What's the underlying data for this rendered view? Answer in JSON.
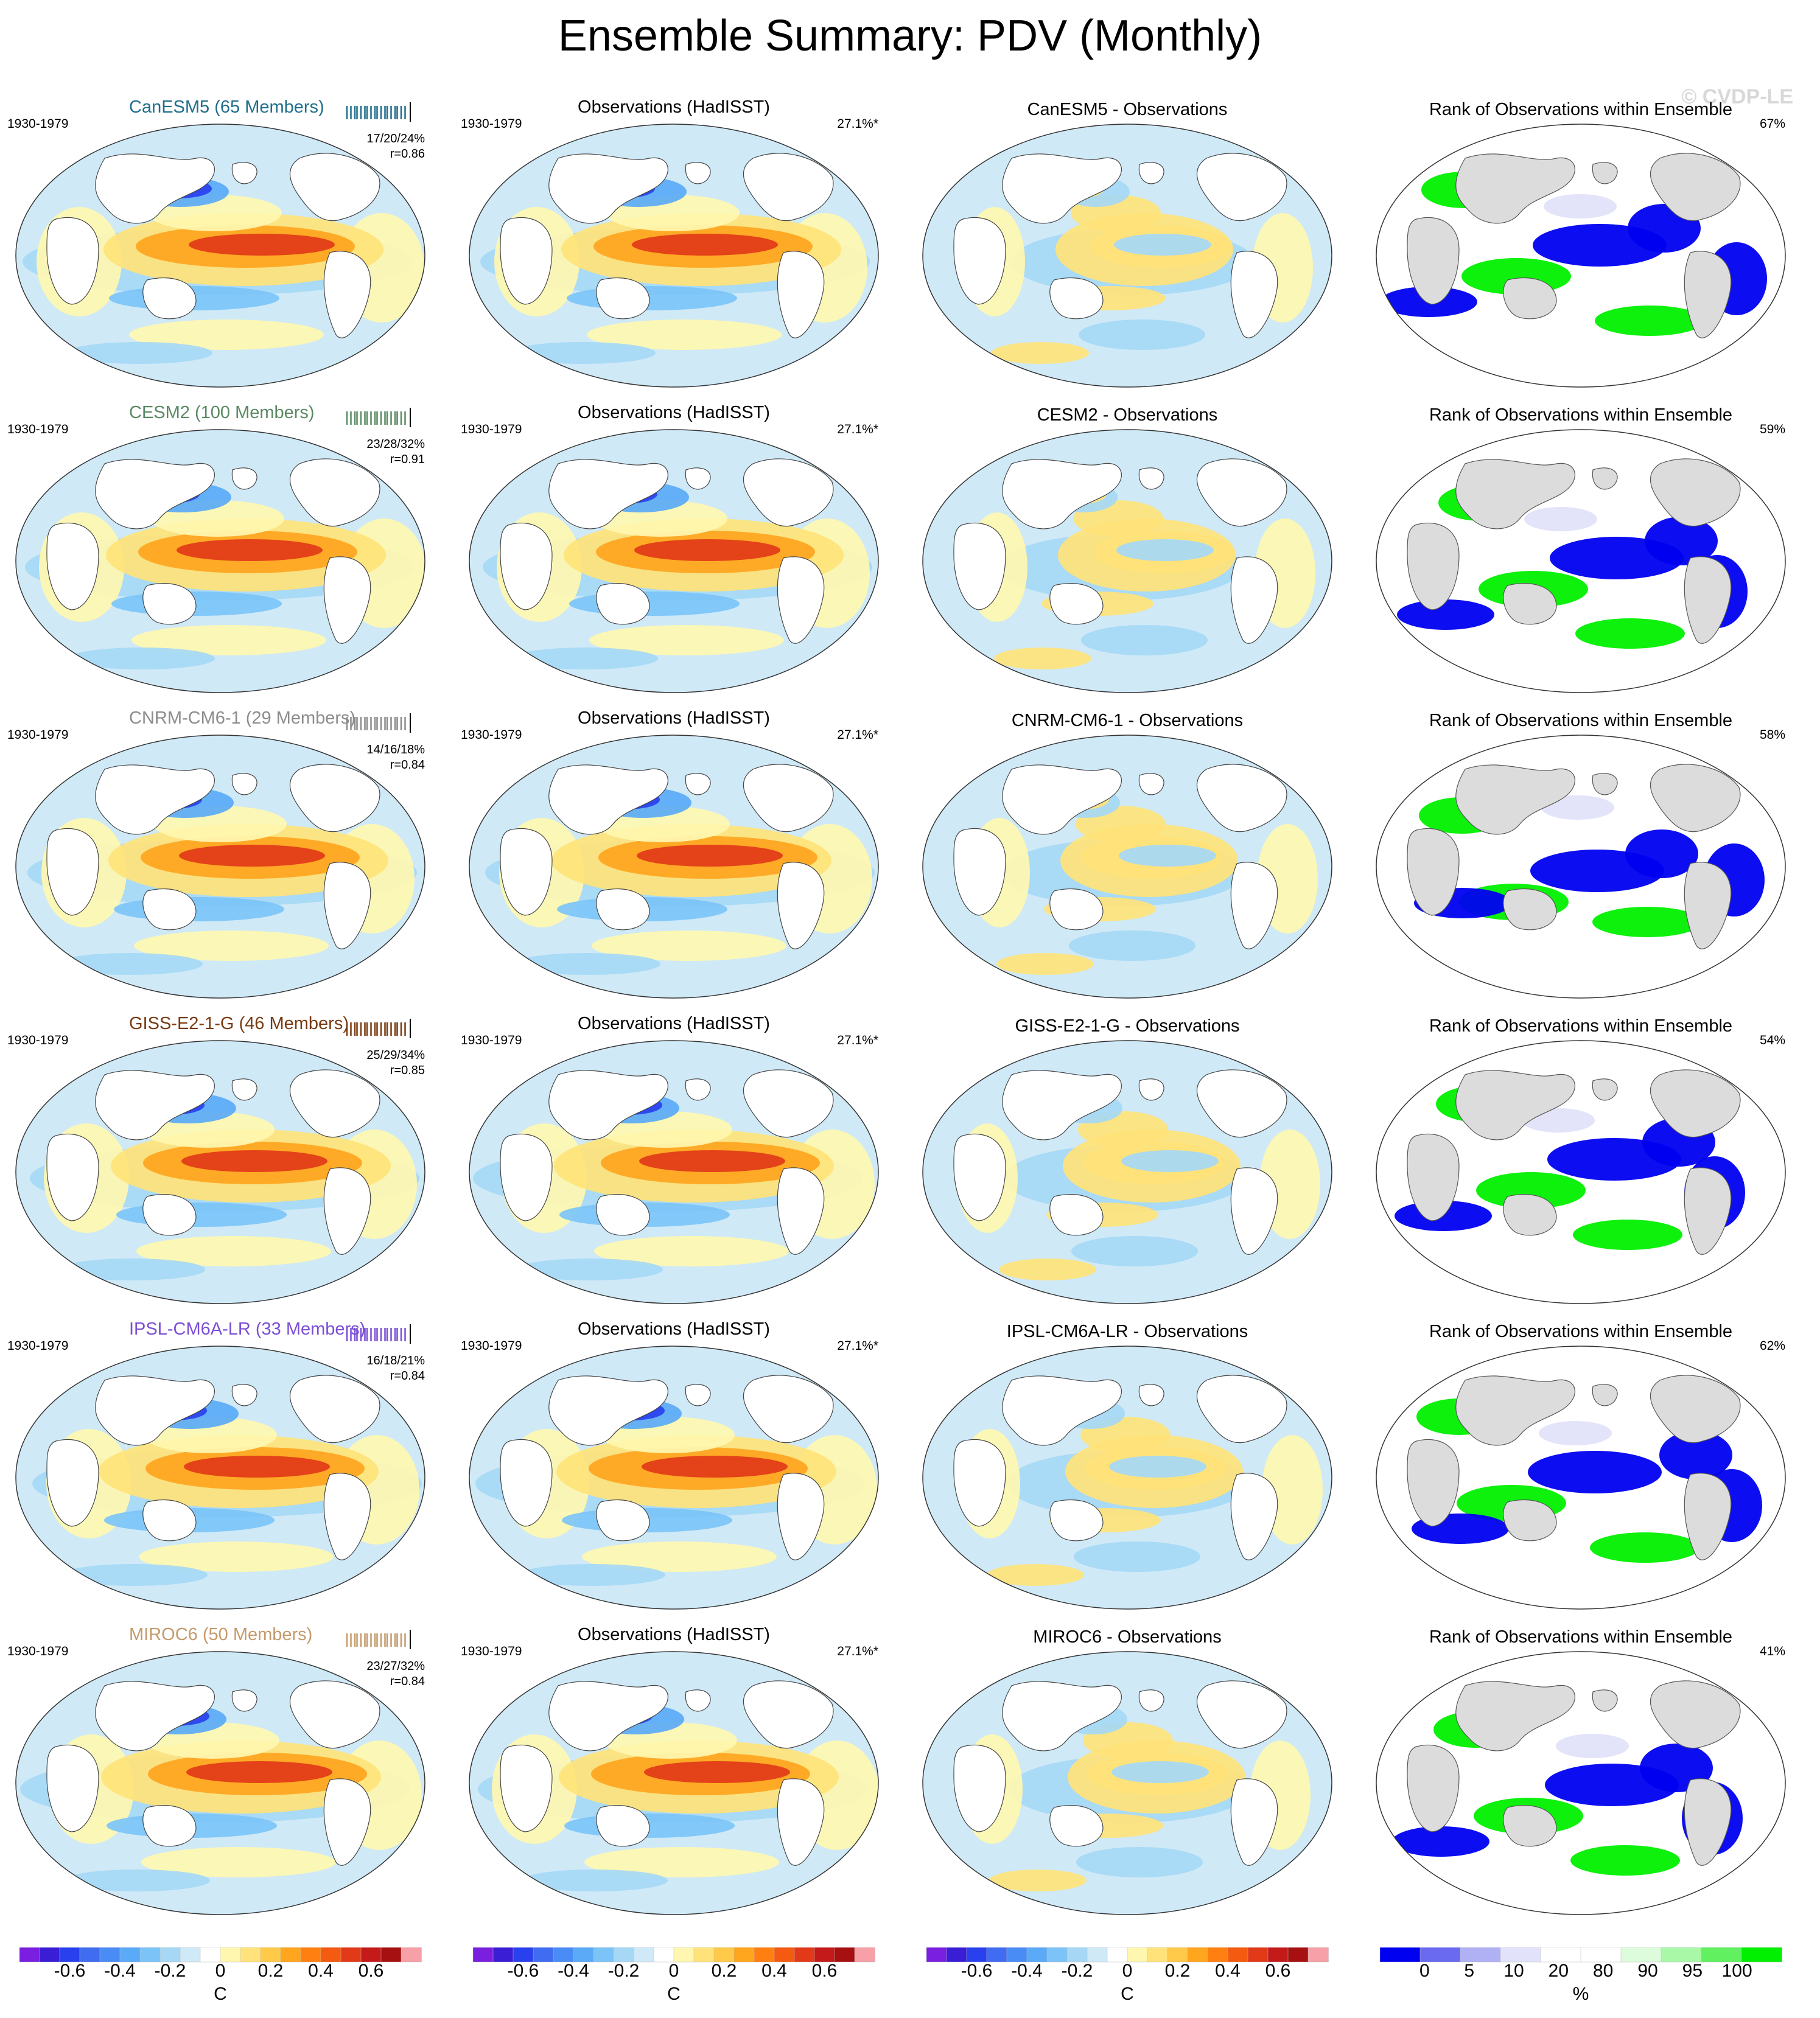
{
  "title": "Ensemble Summary: PDV (Monthly)",
  "watermark": "© CVDP-LE",
  "period": "1930-1979",
  "obs_title": "Observations (HadISST)",
  "obs_pct": "27.1%*",
  "rank_title": "Rank of Observations within Ensemble",
  "rows": [
    {
      "model_title": "CanESM5 (65 Members)",
      "color": "#1f6e8c",
      "stats1": "17/20/24%",
      "stats2": "r=0.86",
      "diff_title": "CanESM5 - Observations",
      "rank_pct": "67%"
    },
    {
      "model_title": "CESM2 (100 Members)",
      "color": "#5a8a63",
      "stats1": "23/28/32%",
      "stats2": "r=0.91",
      "diff_title": "CESM2 - Observations",
      "rank_pct": "59%"
    },
    {
      "model_title": "CNRM-CM6-1 (29 Members)",
      "color": "#8c8c8c",
      "stats1": "14/16/18%",
      "stats2": "r=0.84",
      "diff_title": "CNRM-CM6-1 - Observations",
      "rank_pct": "58%"
    },
    {
      "model_title": "GISS-E2-1-G (46 Members)",
      "color": "#7a3b10",
      "stats1": "25/29/34%",
      "stats2": "r=0.85",
      "diff_title": "GISS-E2-1-G - Observations",
      "rank_pct": "54%"
    },
    {
      "model_title": "IPSL-CM6A-LR (33 Members)",
      "color": "#7b4fd6",
      "stats1": "16/18/21%",
      "stats2": "r=0.84",
      "diff_title": "IPSL-CM6A-LR - Observations",
      "rank_pct": "62%"
    },
    {
      "model_title": "MIROC6 (50 Members)",
      "color": "#c49a6c",
      "stats1": "23/27/32%",
      "stats2": "r=0.84",
      "diff_title": "MIROC6 - Observations",
      "rank_pct": "41%"
    }
  ],
  "colorbar_temp": {
    "ticks": [
      "-0.6",
      "-0.4",
      "-0.2",
      "0",
      "0.2",
      "0.4",
      "0.6"
    ],
    "unit": "C",
    "colors": [
      "#7a1fe0",
      "#3a1ed6",
      "#2840ee",
      "#3f6cf0",
      "#4a8cf5",
      "#5aaaf7",
      "#7cc4f7",
      "#a6d8f5",
      "#cfe9f7",
      "#ffffff",
      "#fff7b0",
      "#ffe37a",
      "#ffc94a",
      "#ffa51e",
      "#ff8010",
      "#f45a10",
      "#e23a18",
      "#c41a1a",
      "#a61010",
      "#f7a0a8"
    ]
  },
  "colorbar_rank": {
    "ticks": [
      "0",
      "5",
      "10",
      "20",
      "80",
      "90",
      "95",
      "100"
    ],
    "unit": "%",
    "colors": [
      "#0000f0",
      "#6a6af0",
      "#b0b0f4",
      "#e2e2fa",
      "#ffffff",
      "#ffffff",
      "#dcfcdc",
      "#a8f8a8",
      "#60f060",
      "#00f000"
    ]
  }
}
